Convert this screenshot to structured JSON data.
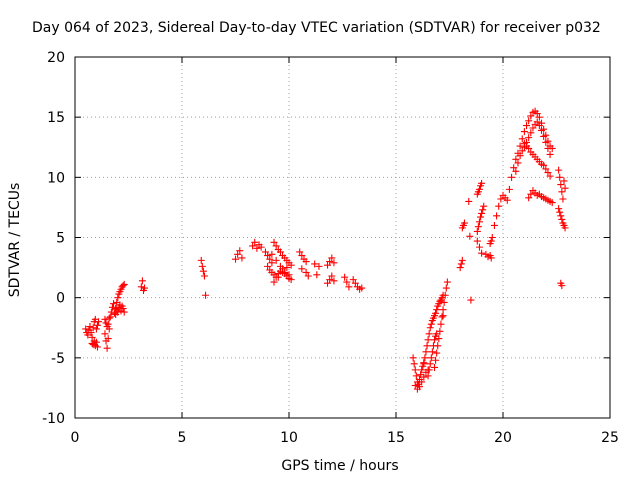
{
  "chart_data": {
    "type": "scatter",
    "title": "Day 064 of 2023, Sidereal Day-to-day VTEC variation (SDTVAR) for receiver p032",
    "xlabel": "GPS time / hours",
    "ylabel": "SDTVAR / TECUs",
    "xlim": [
      0,
      25
    ],
    "ylim": [
      -10,
      20
    ],
    "xticks": [
      "0",
      "5",
      "10",
      "15",
      "20",
      "25"
    ],
    "yticks": [
      "-10",
      "-5",
      "0",
      "5",
      "10",
      "15",
      "20"
    ],
    "grid": true,
    "marker": "+",
    "colors": {
      "points": "#ff0000",
      "grid": "#a0a0a0",
      "axes": "#000000"
    },
    "series": [
      {
        "name": "p032",
        "x": [
          0.5,
          0.55,
          0.6,
          0.65,
          0.7,
          0.75,
          0.8,
          0.85,
          0.9,
          0.95,
          1.0,
          1.05,
          1.1,
          0.8,
          0.85,
          0.9,
          0.95,
          1.0,
          1.05,
          1.4,
          1.45,
          1.5,
          1.55,
          1.6,
          1.4,
          1.45,
          1.5,
          1.55,
          1.6,
          1.65,
          1.7,
          1.75,
          1.8,
          1.85,
          1.9,
          1.95,
          2.0,
          2.05,
          2.1,
          2.15,
          2.2,
          2.25,
          2.3,
          1.9,
          1.95,
          2.0,
          2.05,
          2.1,
          2.15,
          2.2,
          2.25,
          2.3,
          3.1,
          3.15,
          3.2,
          3.25,
          5.9,
          5.95,
          6.0,
          6.05,
          6.1,
          7.5,
          7.6,
          7.7,
          7.8,
          8.3,
          8.4,
          8.5,
          8.6,
          8.7,
          8.9,
          9.0,
          9.1,
          9.2,
          9.3,
          9.4,
          9.5,
          9.6,
          9.7,
          9.8,
          9.9,
          10.0,
          10.1,
          9.0,
          9.1,
          9.2,
          9.3,
          9.4,
          9.5,
          9.6,
          9.7,
          9.8,
          9.9,
          10.0,
          10.1,
          9.2,
          9.4,
          9.6,
          9.8,
          10.0,
          9.3,
          9.5,
          9.7,
          9.9,
          10.0,
          10.5,
          10.6,
          10.7,
          10.8,
          10.6,
          10.8,
          10.9,
          11.2,
          11.3,
          11.4,
          11.8,
          11.9,
          12.0,
          12.1,
          11.8,
          11.9,
          12.0,
          12.1,
          12.6,
          12.7,
          12.8,
          13.0,
          13.1,
          13.2,
          13.3,
          13.4,
          15.8,
          15.85,
          15.9,
          15.95,
          16.0,
          16.05,
          16.1,
          16.15,
          16.2,
          16.25,
          16.3,
          15.9,
          16.0,
          16.1,
          16.2,
          16.3,
          16.4,
          16.5,
          16.3,
          16.35,
          16.4,
          16.45,
          16.5,
          16.55,
          16.6,
          16.65,
          16.7,
          16.75,
          16.8,
          16.85,
          16.9,
          16.95,
          17.0,
          17.05,
          17.1,
          17.15,
          17.2,
          16.8,
          16.85,
          16.9,
          16.95,
          17.0,
          17.05,
          17.1,
          17.15,
          17.2,
          17.25,
          17.3,
          17.35,
          17.4,
          16.5,
          16.55,
          16.6,
          16.65,
          16.7,
          16.75,
          16.8,
          16.85,
          16.9,
          17.2,
          18.0,
          18.05,
          18.1,
          18.1,
          18.15,
          18.2,
          18.4,
          18.45,
          18.5,
          18.8,
          18.85,
          18.9,
          18.95,
          19.0,
          18.8,
          18.85,
          18.9,
          18.95,
          19.0,
          19.05,
          19.1,
          19.4,
          19.45,
          19.2,
          19.3,
          19.4,
          19.45,
          19.5,
          18.8,
          18.9,
          19.0,
          19.6,
          19.7,
          19.8,
          19.9,
          20.0,
          20.1,
          20.2,
          20.3,
          20.4,
          20.5,
          20.6,
          20.7,
          20.8,
          20.9,
          21.0,
          21.1,
          21.2,
          21.3,
          21.4,
          21.5,
          21.6,
          21.7,
          21.8,
          21.9,
          22.0,
          22.1,
          22.2,
          22.3,
          20.6,
          20.7,
          20.8,
          20.9,
          21.0,
          21.1,
          21.2,
          21.3,
          21.4,
          21.5,
          21.6,
          21.7,
          21.8,
          21.9,
          22.0,
          22.1,
          22.2,
          21.0,
          21.1,
          21.2,
          21.3,
          21.4,
          21.5,
          21.6,
          21.7,
          21.8,
          21.9,
          22.0,
          22.1,
          22.2,
          21.2,
          21.3,
          21.4,
          21.5,
          21.6,
          21.7,
          21.8,
          21.9,
          22.0,
          22.1,
          22.2,
          22.3,
          22.6,
          22.65,
          22.7,
          22.75,
          22.8,
          22.85,
          22.9,
          22.6,
          22.65,
          22.7,
          22.75,
          22.8,
          22.85,
          22.9,
          22.7,
          22.75
        ],
        "y": [
          -2.6,
          -2.9,
          -3.1,
          -2.7,
          -2.4,
          -2.9,
          -3.3,
          -2.5,
          -2.0,
          -1.8,
          -2.6,
          -2.3,
          -2.0,
          -3.8,
          -3.9,
          -3.6,
          -4.0,
          -3.7,
          -4.1,
          -3.0,
          -3.6,
          -4.2,
          -3.4,
          -2.6,
          -1.8,
          -2.1,
          -2.4,
          -2.2,
          -1.7,
          -1.6,
          -1.2,
          -0.8,
          -0.5,
          -1.3,
          -0.9,
          -0.4,
          0.0,
          0.3,
          0.5,
          0.7,
          0.9,
          1.0,
          1.1,
          -1.4,
          -1.0,
          -1.2,
          -0.8,
          -0.6,
          -1.1,
          -0.7,
          -0.9,
          -1.2,
          0.9,
          1.4,
          0.6,
          0.8,
          3.1,
          2.6,
          2.2,
          1.8,
          0.2,
          3.2,
          3.6,
          3.9,
          3.3,
          4.3,
          4.6,
          4.1,
          4.4,
          4.2,
          3.8,
          3.5,
          3.2,
          2.9,
          4.6,
          4.3,
          4.0,
          3.8,
          3.5,
          3.3,
          3.1,
          2.9,
          2.7,
          2.6,
          2.3,
          2.1,
          1.9,
          1.7,
          2.0,
          2.2,
          2.4,
          2.0,
          1.8,
          1.6,
          1.5,
          3.6,
          3.1,
          2.6,
          2.1,
          1.6,
          1.3,
          1.7,
          2.1,
          2.5,
          1.9,
          3.8,
          3.5,
          3.2,
          3.0,
          2.4,
          2.1,
          1.8,
          2.8,
          1.9,
          2.6,
          1.2,
          1.5,
          1.8,
          1.4,
          2.7,
          3.0,
          3.3,
          2.9,
          1.7,
          1.3,
          0.9,
          1.5,
          1.2,
          0.9,
          0.7,
          0.8,
          -5.0,
          -5.5,
          -6.0,
          -6.5,
          -7.0,
          -7.2,
          -6.8,
          -6.4,
          -6.0,
          -5.7,
          -5.5,
          -7.3,
          -7.6,
          -7.4,
          -7.0,
          -6.6,
          -6.2,
          -6.0,
          -5.4,
          -5.0,
          -4.5,
          -4.0,
          -3.5,
          -3.0,
          -2.5,
          -2.2,
          -1.9,
          -1.7,
          -1.5,
          -1.3,
          -1.0,
          -0.7,
          -0.5,
          -0.3,
          -0.2,
          0.0,
          0.2,
          -5.8,
          -5.2,
          -4.6,
          -4.0,
          -3.4,
          -2.8,
          -2.2,
          -1.6,
          -1.0,
          -0.4,
          0.2,
          0.8,
          1.3,
          -6.5,
          -6.0,
          -5.5,
          -5.0,
          -4.5,
          -4.0,
          -3.5,
          -3.2,
          -3.0,
          -1.5,
          2.5,
          2.8,
          3.1,
          5.8,
          6.0,
          6.2,
          8.0,
          5.1,
          -0.2,
          8.6,
          8.8,
          9.0,
          9.3,
          9.5,
          5.5,
          5.9,
          6.3,
          6.7,
          7.0,
          7.3,
          7.6,
          3.5,
          3.3,
          3.6,
          3.4,
          4.5,
          4.7,
          5.0,
          4.7,
          4.2,
          3.7,
          6.0,
          6.8,
          7.6,
          8.2,
          8.5,
          8.3,
          8.1,
          9.0,
          10.0,
          10.8,
          11.5,
          12.0,
          12.6,
          13.2,
          13.8,
          14.3,
          14.7,
          15.1,
          15.4,
          15.5,
          15.3,
          15.0,
          14.5,
          14.0,
          13.5,
          13.0,
          12.6,
          12.4,
          10.5,
          11.2,
          11.8,
          12.2,
          12.5,
          12.9,
          13.3,
          13.7,
          14.1,
          14.4,
          14.6,
          14.3,
          13.9,
          13.4,
          12.9,
          12.4,
          11.9,
          12.8,
          12.6,
          12.4,
          12.1,
          11.9,
          11.7,
          11.5,
          11.3,
          11.1,
          11.0,
          10.7,
          10.4,
          10.1,
          8.3,
          8.6,
          8.9,
          8.7,
          8.5,
          8.6,
          8.4,
          8.3,
          8.2,
          8.1,
          8.0,
          7.9,
          10.6,
          10.0,
          9.4,
          8.8,
          8.2,
          9.7,
          9.1,
          7.4,
          7.1,
          6.8,
          6.5,
          6.2,
          6.0,
          5.8,
          1.2,
          1.0
        ]
      }
    ]
  }
}
